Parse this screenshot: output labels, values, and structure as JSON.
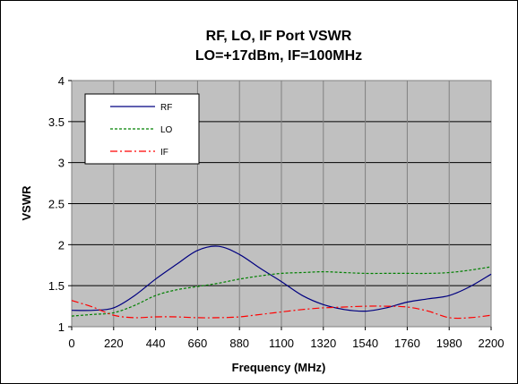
{
  "chart_data": {
    "type": "line",
    "title": "RF, LO, IF Port VSWR",
    "subtitle": "LO=+17dBm, IF=100MHz",
    "xlabel": "Frequency (MHz)",
    "ylabel": "VSWR",
    "xlim": [
      0,
      2200
    ],
    "ylim": [
      1,
      4
    ],
    "x_ticks": [
      "0",
      "220",
      "440",
      "660",
      "880",
      "1100",
      "1320",
      "1540",
      "1760",
      "1980",
      "2200"
    ],
    "y_ticks": [
      "1",
      "1.5",
      "2",
      "2.5",
      "3",
      "3.5",
      "4"
    ],
    "grid": true,
    "legend_position": "top-left",
    "series": [
      {
        "name": "RF",
        "color": "#000080",
        "style": "solid",
        "x": [
          0,
          110,
          220,
          330,
          440,
          550,
          660,
          770,
          880,
          990,
          1100,
          1210,
          1320,
          1430,
          1540,
          1650,
          1760,
          1870,
          1980,
          2090,
          2200
        ],
        "y": [
          1.2,
          1.2,
          1.23,
          1.38,
          1.58,
          1.76,
          1.93,
          1.98,
          1.88,
          1.71,
          1.55,
          1.38,
          1.27,
          1.21,
          1.19,
          1.23,
          1.3,
          1.34,
          1.38,
          1.49,
          1.64
        ]
      },
      {
        "name": "LO",
        "color": "#008000",
        "style": "dashed",
        "x": [
          0,
          110,
          220,
          330,
          440,
          550,
          660,
          770,
          880,
          990,
          1100,
          1210,
          1320,
          1430,
          1540,
          1650,
          1760,
          1870,
          1980,
          2090,
          2200
        ],
        "y": [
          1.13,
          1.15,
          1.17,
          1.26,
          1.38,
          1.45,
          1.49,
          1.53,
          1.58,
          1.62,
          1.65,
          1.66,
          1.67,
          1.66,
          1.65,
          1.65,
          1.65,
          1.65,
          1.66,
          1.69,
          1.73
        ]
      },
      {
        "name": "IF",
        "color": "#ff0000",
        "style": "dashdot",
        "x": [
          0,
          110,
          220,
          330,
          440,
          550,
          660,
          770,
          880,
          990,
          1100,
          1210,
          1320,
          1430,
          1540,
          1650,
          1760,
          1870,
          1980,
          2090,
          2200
        ],
        "y": [
          1.32,
          1.24,
          1.14,
          1.11,
          1.12,
          1.12,
          1.11,
          1.11,
          1.12,
          1.15,
          1.18,
          1.21,
          1.23,
          1.24,
          1.25,
          1.25,
          1.24,
          1.19,
          1.11,
          1.11,
          1.14
        ]
      }
    ]
  }
}
